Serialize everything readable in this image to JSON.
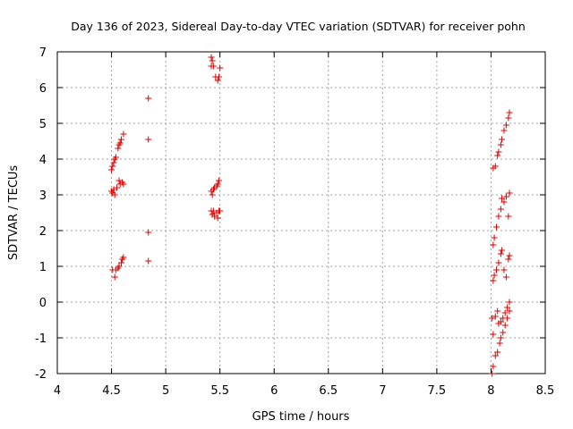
{
  "chart_data": {
    "type": "scatter",
    "title": "Day 136 of 2023, Sidereal Day-to-day VTEC variation (SDTVAR) for receiver pohn",
    "xlabel": "GPS time / hours",
    "ylabel": "SDTVAR / TECUs",
    "xlim": [
      4,
      8.5
    ],
    "ylim": [
      -2,
      7
    ],
    "xticks": [
      4,
      4.5,
      5,
      5.5,
      6,
      6.5,
      7,
      7.5,
      8,
      8.5
    ],
    "xtick_labels": [
      "4",
      "4.5",
      "5",
      "5.5",
      "6",
      "6.5",
      "7",
      "7.5",
      "8",
      "8.5"
    ],
    "yticks": [
      -2,
      -1,
      0,
      1,
      2,
      3,
      4,
      5,
      6,
      7
    ],
    "ytick_labels": [
      "-2",
      "-1",
      "0",
      "1",
      "2",
      "3",
      "4",
      "5",
      "6",
      "7"
    ],
    "grid": true,
    "marker": "+",
    "color": "#e00000",
    "series": [
      {
        "name": "SDTVAR",
        "points": [
          [
            4.5,
            3.7
          ],
          [
            4.51,
            3.8
          ],
          [
            4.52,
            3.9
          ],
          [
            4.53,
            4.0
          ],
          [
            4.54,
            4.05
          ],
          [
            4.56,
            4.3
          ],
          [
            4.57,
            4.4
          ],
          [
            4.58,
            4.45
          ],
          [
            4.59,
            4.55
          ],
          [
            4.61,
            4.7
          ],
          [
            4.5,
            3.1
          ],
          [
            4.51,
            3.05
          ],
          [
            4.52,
            3.15
          ],
          [
            4.53,
            3.0
          ],
          [
            4.55,
            3.2
          ],
          [
            4.57,
            3.4
          ],
          [
            4.58,
            3.3
          ],
          [
            4.6,
            3.35
          ],
          [
            4.61,
            3.3
          ],
          [
            4.51,
            0.9
          ],
          [
            4.53,
            0.7
          ],
          [
            4.54,
            0.9
          ],
          [
            4.56,
            0.95
          ],
          [
            4.57,
            1.0
          ],
          [
            4.59,
            1.1
          ],
          [
            4.6,
            1.2
          ],
          [
            4.61,
            1.25
          ],
          [
            4.84,
            5.7
          ],
          [
            4.84,
            4.55
          ],
          [
            4.84,
            1.95
          ],
          [
            4.84,
            1.15
          ],
          [
            5.42,
            6.85
          ],
          [
            5.42,
            6.6
          ],
          [
            5.43,
            6.75
          ],
          [
            5.44,
            6.6
          ],
          [
            5.46,
            6.3
          ],
          [
            5.48,
            6.2
          ],
          [
            5.49,
            6.3
          ],
          [
            5.5,
            6.55
          ],
          [
            5.42,
            3.1
          ],
          [
            5.43,
            3.0
          ],
          [
            5.44,
            3.15
          ],
          [
            5.45,
            3.2
          ],
          [
            5.47,
            3.25
          ],
          [
            5.48,
            3.3
          ],
          [
            5.49,
            3.4
          ],
          [
            5.42,
            2.55
          ],
          [
            5.43,
            2.45
          ],
          [
            5.44,
            2.55
          ],
          [
            5.45,
            2.4
          ],
          [
            5.47,
            2.5
          ],
          [
            5.48,
            2.35
          ],
          [
            5.49,
            2.55
          ],
          [
            5.5,
            2.55
          ],
          [
            8.02,
            3.75
          ],
          [
            8.04,
            3.8
          ],
          [
            8.06,
            4.1
          ],
          [
            8.07,
            4.2
          ],
          [
            8.09,
            4.4
          ],
          [
            8.1,
            4.55
          ],
          [
            8.12,
            4.8
          ],
          [
            8.14,
            4.95
          ],
          [
            8.16,
            5.15
          ],
          [
            8.17,
            5.3
          ],
          [
            8.02,
            1.6
          ],
          [
            8.03,
            1.8
          ],
          [
            8.05,
            2.1
          ],
          [
            8.07,
            2.4
          ],
          [
            8.09,
            2.6
          ],
          [
            8.1,
            2.9
          ],
          [
            8.12,
            2.8
          ],
          [
            8.14,
            2.95
          ],
          [
            8.16,
            2.4
          ],
          [
            8.17,
            3.05
          ],
          [
            8.02,
            0.6
          ],
          [
            8.03,
            0.75
          ],
          [
            8.05,
            0.9
          ],
          [
            8.07,
            1.1
          ],
          [
            8.09,
            1.35
          ],
          [
            8.1,
            1.45
          ],
          [
            8.12,
            0.9
          ],
          [
            8.14,
            0.7
          ],
          [
            8.16,
            1.2
          ],
          [
            8.17,
            1.3
          ],
          [
            8.01,
            -0.45
          ],
          [
            8.02,
            -0.9
          ],
          [
            8.04,
            -0.4
          ],
          [
            8.06,
            -0.25
          ],
          [
            8.07,
            -0.6
          ],
          [
            8.09,
            -0.55
          ],
          [
            8.11,
            -0.45
          ],
          [
            8.13,
            -0.3
          ],
          [
            8.15,
            -0.15
          ],
          [
            8.17,
            0.0
          ],
          [
            8.01,
            -2.0
          ],
          [
            8.02,
            -1.8
          ],
          [
            8.04,
            -1.5
          ],
          [
            8.06,
            -1.4
          ],
          [
            8.08,
            -1.15
          ],
          [
            8.09,
            -1.0
          ],
          [
            8.11,
            -0.85
          ],
          [
            8.13,
            -0.65
          ],
          [
            8.15,
            -0.45
          ],
          [
            8.17,
            -0.25
          ]
        ]
      }
    ]
  }
}
